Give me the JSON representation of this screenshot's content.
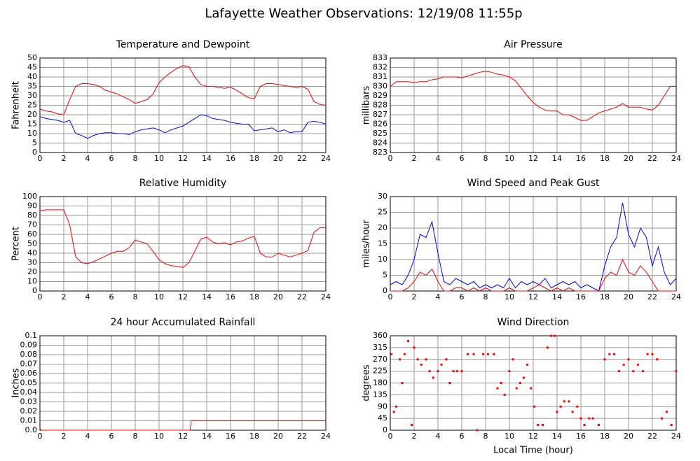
{
  "title": "Lafayette Weather Observations: 12/19/08 11:55p",
  "chart_data": [
    {
      "type": "line",
      "title": "Temperature and Dewpoint",
      "ylabel": "Fahrenheit",
      "grid": true,
      "x": [
        0,
        0.5,
        1,
        1.5,
        2,
        2.5,
        3,
        3.5,
        4,
        4.5,
        5,
        5.5,
        6,
        6.5,
        7,
        7.5,
        8,
        8.5,
        9,
        9.5,
        10,
        10.5,
        11,
        11.5,
        12,
        12.5,
        13,
        13.5,
        14,
        14.5,
        15,
        15.5,
        16,
        16.5,
        17,
        17.5,
        18,
        18.5,
        19,
        19.5,
        20,
        20.5,
        21,
        21.5,
        22,
        22.5,
        23,
        23.5,
        24
      ],
      "xlim": [
        0,
        24
      ],
      "xticks": [
        0,
        2,
        4,
        6,
        8,
        10,
        12,
        14,
        16,
        18,
        20,
        22,
        24
      ],
      "ylim": [
        0,
        50
      ],
      "yticks": [
        0,
        5,
        10,
        15,
        20,
        25,
        30,
        35,
        40,
        45,
        50
      ],
      "series": [
        {
          "color": "#ff0000",
          "values": [
            23,
            22,
            21.5,
            20.5,
            20,
            28,
            35,
            36.5,
            36.5,
            36,
            35,
            33,
            32,
            31,
            29.5,
            28,
            26,
            27,
            28,
            31,
            37,
            40,
            42.5,
            44.5,
            46,
            45.5,
            40,
            36,
            35,
            35,
            34.5,
            34,
            34.5,
            33,
            31,
            29,
            28.5,
            35,
            36.5,
            36.5,
            36,
            35.5,
            35,
            34.5,
            35,
            33.5,
            27,
            25.5,
            25
          ]
        },
        {
          "color": "#0000ff",
          "values": [
            19,
            18,
            17.5,
            17,
            16,
            17,
            10,
            9,
            7.5,
            9,
            10,
            10.5,
            10.5,
            10,
            10,
            9.5,
            11,
            12,
            12.5,
            13,
            12,
            10.5,
            12,
            13,
            14,
            16,
            18,
            20,
            19.5,
            18,
            17.5,
            17,
            16,
            15.5,
            15,
            15,
            11.5,
            12,
            12.5,
            13,
            11,
            12,
            10.5,
            11,
            11,
            16,
            16.5,
            16,
            15
          ]
        }
      ]
    },
    {
      "type": "line",
      "title": "Air Pressure",
      "ylabel": "millibars",
      "grid": true,
      "x": [
        0,
        0.5,
        1,
        1.5,
        2,
        2.5,
        3,
        3.5,
        4,
        4.5,
        5,
        5.5,
        6,
        6.5,
        7,
        7.5,
        8,
        8.5,
        9,
        9.5,
        10,
        10.5,
        11,
        11.5,
        12,
        12.5,
        13,
        13.5,
        14,
        14.5,
        15,
        15.5,
        16,
        16.5,
        17,
        17.5,
        18,
        18.5,
        19,
        19.5,
        20,
        20.5,
        21,
        21.5,
        22,
        22.5,
        23,
        23.5,
        24
      ],
      "xlim": [
        0,
        24
      ],
      "xticks": [
        0,
        2,
        4,
        6,
        8,
        10,
        12,
        14,
        16,
        18,
        20,
        22,
        24
      ],
      "ylim": [
        823,
        833
      ],
      "yticks": [
        823,
        824,
        825,
        826,
        827,
        828,
        829,
        830,
        831,
        832,
        833
      ],
      "series": [
        {
          "color": "#ff0000",
          "values": [
            830,
            830.5,
            830.5,
            830.5,
            830.4,
            830.5,
            830.5,
            830.7,
            830.8,
            831,
            831,
            831,
            830.9,
            831.1,
            831.3,
            831.5,
            831.6,
            831.5,
            831.3,
            831.2,
            831,
            830.6,
            829.8,
            829,
            828.3,
            827.8,
            827.5,
            827.4,
            827.4,
            827,
            827,
            826.7,
            826.4,
            826.4,
            826.8,
            827.2,
            827.4,
            827.6,
            827.8,
            828.2,
            827.8,
            827.8,
            827.8,
            827.6,
            827.5,
            828,
            829,
            830,
            830
          ]
        }
      ]
    },
    {
      "type": "line",
      "title": "Relative Humidity",
      "ylabel": "Percent",
      "grid": true,
      "x": [
        0,
        0.5,
        1,
        1.5,
        2,
        2.5,
        3,
        3.5,
        4,
        4.5,
        5,
        5.5,
        6,
        6.5,
        7,
        7.5,
        8,
        8.5,
        9,
        9.5,
        10,
        10.5,
        11,
        11.5,
        12,
        12.5,
        13,
        13.5,
        14,
        14.5,
        15,
        15.5,
        16,
        16.5,
        17,
        17.5,
        18,
        18.5,
        19,
        19.5,
        20,
        20.5,
        21,
        21.5,
        22,
        22.5,
        23,
        23.5,
        24
      ],
      "xlim": [
        0,
        24
      ],
      "xticks": [
        0,
        2,
        4,
        6,
        8,
        10,
        12,
        14,
        16,
        18,
        20,
        22,
        24
      ],
      "ylim": [
        0,
        100
      ],
      "yticks": [
        0,
        10,
        20,
        30,
        40,
        50,
        60,
        70,
        80,
        90,
        100
      ],
      "series": [
        {
          "color": "#ff0000",
          "values": [
            85,
            86,
            86,
            86,
            86,
            70,
            36,
            30,
            29,
            31,
            34,
            37,
            40,
            42,
            42,
            46,
            54,
            52,
            50,
            42,
            33,
            29,
            27,
            26,
            25,
            30,
            42,
            55,
            57,
            52,
            50,
            51,
            49,
            52,
            53,
            56,
            58,
            40,
            36,
            36,
            40,
            38,
            36,
            38,
            40,
            43,
            62,
            67,
            67
          ]
        }
      ]
    },
    {
      "type": "line",
      "title": "Wind Speed and Peak Gust",
      "ylabel": "miles/hour",
      "grid": true,
      "x": [
        0,
        0.5,
        1,
        1.5,
        2,
        2.5,
        3,
        3.5,
        4,
        4.5,
        5,
        5.5,
        6,
        6.5,
        7,
        7.5,
        8,
        8.5,
        9,
        9.5,
        10,
        10.5,
        11,
        11.5,
        12,
        12.5,
        13,
        13.5,
        14,
        14.5,
        15,
        15.5,
        16,
        16.5,
        17,
        17.5,
        18,
        18.5,
        19,
        19.5,
        20,
        20.5,
        21,
        21.5,
        22,
        22.5,
        23,
        23.5,
        24
      ],
      "xlim": [
        0,
        24
      ],
      "xticks": [
        0,
        2,
        4,
        6,
        8,
        10,
        12,
        14,
        16,
        18,
        20,
        22,
        24
      ],
      "ylim": [
        0,
        30
      ],
      "yticks": [
        0,
        5,
        10,
        15,
        20,
        25,
        30
      ],
      "series": [
        {
          "color": "#0000ff",
          "values": [
            2,
            3,
            2,
            5,
            10,
            18,
            17,
            22,
            12,
            3,
            2,
            4,
            3,
            2,
            3,
            1,
            2,
            1,
            2,
            1,
            4,
            1,
            3,
            2,
            3,
            2,
            4,
            1,
            2,
            3,
            2,
            3,
            1,
            2,
            1,
            0,
            8,
            14,
            17,
            28,
            18,
            14,
            20,
            17,
            8,
            14,
            6,
            2,
            4
          ]
        },
        {
          "color": "#ff0000",
          "values": [
            0,
            0,
            0,
            1,
            3,
            6,
            5,
            7,
            3,
            0,
            0,
            1,
            1,
            0,
            1,
            0,
            1,
            0,
            0,
            0,
            1,
            0,
            0,
            0,
            1,
            2,
            1,
            0,
            1,
            0,
            1,
            0,
            0,
            0,
            0,
            0,
            4,
            6,
            5,
            10,
            6,
            5,
            8,
            6,
            3,
            0,
            0,
            0,
            0
          ]
        }
      ]
    },
    {
      "type": "line",
      "title": "24 hour Accumulated Rainfall",
      "ylabel": "Inches",
      "grid": true,
      "x": [
        0,
        0.1,
        12.6,
        12.7,
        24
      ],
      "xlim": [
        0,
        24
      ],
      "xticks": [
        0,
        2,
        4,
        6,
        8,
        10,
        12,
        14,
        16,
        18,
        20,
        22,
        24
      ],
      "ylim": [
        0,
        0.1
      ],
      "yticks": [
        {
          "value": 0,
          "label": "0.0"
        },
        0.01,
        0.02,
        0.03,
        0.04,
        0.05,
        0.06,
        0.07,
        0.08,
        0.09,
        {
          "value": 0.1,
          "label": "0.1"
        }
      ],
      "series": [
        {
          "color": "#ff0000",
          "values": [
            0.002,
            0,
            0,
            0.01,
            0.01
          ]
        }
      ]
    },
    {
      "type": "scatter",
      "title": "Wind Direction",
      "ylabel": "degrees",
      "xlabel": "Local Time (hour)",
      "grid": true,
      "x": [
        0.1,
        0.3,
        0.5,
        0.8,
        1,
        1.2,
        1.5,
        1.8,
        2,
        2.3,
        2.6,
        3,
        3.3,
        3.6,
        4,
        4.3,
        4.7,
        5,
        5.3,
        5.6,
        6,
        6.5,
        7,
        7.3,
        7.8,
        8.2,
        8.7,
        9,
        9.3,
        9.6,
        10,
        10.3,
        10.6,
        10.9,
        11.2,
        11.5,
        11.8,
        12.1,
        12.4,
        12.8,
        13.2,
        13.5,
        13.8,
        14,
        14.3,
        14.6,
        15,
        15.3,
        15.7,
        16,
        16.3,
        16.7,
        17,
        17.5,
        18,
        18.4,
        18.8,
        19.2,
        19.6,
        20,
        20.4,
        20.8,
        21.2,
        21.6,
        22,
        22.4,
        22.8,
        23.2,
        23.6,
        24
      ],
      "xlim": [
        0,
        24
      ],
      "xticks": [
        0,
        2,
        4,
        6,
        8,
        10,
        12,
        14,
        16,
        18,
        20,
        22,
        24
      ],
      "ylim": [
        0,
        360
      ],
      "yticks": [
        0,
        45,
        90,
        135,
        180,
        225,
        270,
        315,
        360
      ],
      "series": [
        {
          "color": "#ff0000",
          "values": [
            290,
            70,
            90,
            270,
            180,
            290,
            340,
            20,
            315,
            270,
            250,
            270,
            225,
            200,
            225,
            250,
            270,
            180,
            225,
            225,
            225,
            290,
            290,
            0,
            290,
            290,
            290,
            160,
            180,
            135,
            225,
            270,
            160,
            180,
            200,
            250,
            160,
            90,
            20,
            20,
            315,
            360,
            360,
            70,
            90,
            110,
            110,
            70,
            90,
            45,
            20,
            45,
            45,
            20,
            270,
            290,
            290,
            225,
            250,
            270,
            225,
            250,
            225,
            290,
            290,
            270,
            45,
            70,
            20,
            225
          ]
        }
      ]
    }
  ]
}
